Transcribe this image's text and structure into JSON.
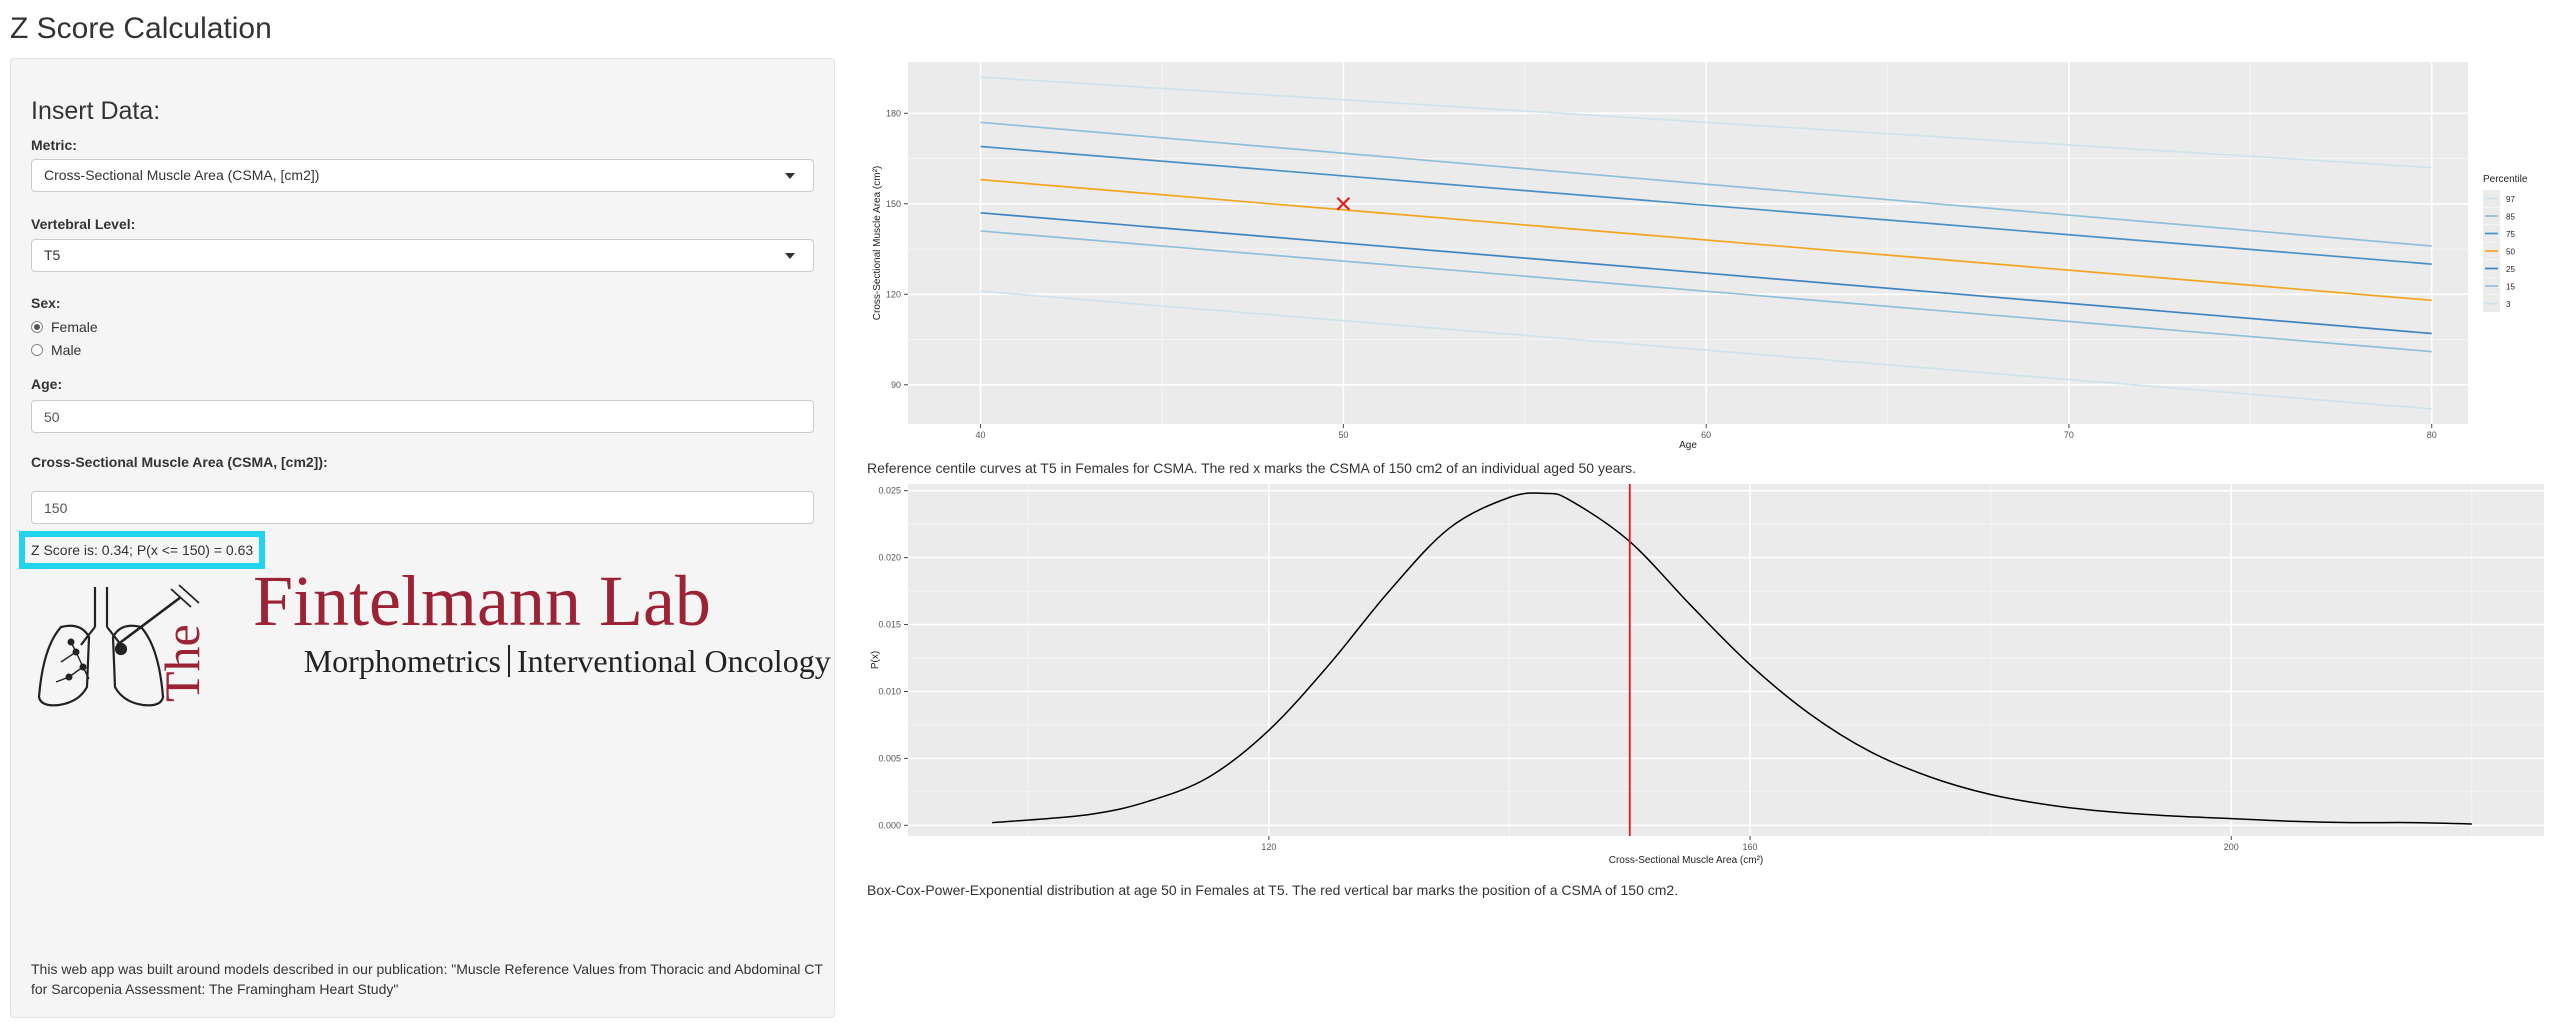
{
  "page": {
    "title": "Z Score Calculation"
  },
  "sidebar": {
    "heading": "Insert Data:",
    "metric": {
      "label": "Metric:",
      "value": "Cross-Sectional Muscle Area (CSMA, [cm2])"
    },
    "vertebral": {
      "label": "Vertebral Level:",
      "value": "T5"
    },
    "sex": {
      "label": "Sex:",
      "options": [
        "Female",
        "Male"
      ],
      "selected": "Female"
    },
    "age": {
      "label": "Age:",
      "value": "50"
    },
    "csma": {
      "label": "Cross-Sectional Muscle Area (CSMA, [cm2]):",
      "value": "150"
    },
    "result": "Z Score is: 0.34; P(x <= 150) = 0.63",
    "logo": {
      "the": "The",
      "name": "Fintelmann Lab",
      "left_sub": "Morphometrics",
      "right_sub": "Interventional Oncology",
      "brand_color": "#9b2335"
    },
    "publication": "This web app was built around models described in our publication: \"Muscle Reference Values from Thoracic and Abdominal CT for Sarcopenia Assessment: The Framingham Heart Study\""
  },
  "chart_data": [
    {
      "type": "line",
      "xlabel": "Age",
      "ylabel": "Cross-Sectional Muscle Area (cm²)",
      "xlim": [
        38,
        81
      ],
      "ylim": [
        77,
        197
      ],
      "xticks": [
        40,
        50,
        60,
        70,
        80
      ],
      "yticks": [
        90,
        120,
        150,
        180
      ],
      "legend_title": "Percentile",
      "legend_position": "right",
      "grid": true,
      "x": [
        40,
        80
      ],
      "series": [
        {
          "name": "97",
          "values": [
            192,
            162
          ],
          "color": "#cfe3ea"
        },
        {
          "name": "85",
          "values": [
            177,
            136
          ],
          "color": "#8fbfd9"
        },
        {
          "name": "75",
          "values": [
            169,
            130
          ],
          "color": "#4a90c4"
        },
        {
          "name": "50",
          "values": [
            158,
            118
          ],
          "color": "#f2a51e"
        },
        {
          "name": "25",
          "values": [
            147,
            107
          ],
          "color": "#3f84bf"
        },
        {
          "name": "15",
          "values": [
            141,
            101
          ],
          "color": "#8fbfd9"
        },
        {
          "name": "3",
          "values": [
            121,
            82
          ],
          "color": "#cfe3ea"
        }
      ],
      "marker": {
        "x": 50,
        "y": 150,
        "symbol": "x",
        "color": "#e41a1c"
      },
      "caption": "Reference centile curves at T5 in Females for CSMA. The red x marks the CSMA of 150 cm2 of an individual aged 50 years."
    },
    {
      "type": "line",
      "xlabel": "Cross-Sectional Muscle Area (cm²)",
      "ylabel": "P(x)",
      "xlim": [
        90,
        226
      ],
      "ylim": [
        -0.0008,
        0.0255
      ],
      "xticks": [
        120,
        160,
        200
      ],
      "yticks": [
        0.0,
        0.005,
        0.01,
        0.015,
        0.02,
        0.025
      ],
      "ytick_labels": [
        "0.000",
        "0.005",
        "0.010",
        "0.015",
        "0.020",
        "0.025"
      ],
      "grid": true,
      "x": [
        97,
        105,
        110,
        115,
        120,
        125,
        130,
        135,
        140,
        143,
        145,
        150,
        155,
        160,
        165,
        170,
        175,
        180,
        185,
        190,
        195,
        200,
        205,
        210,
        215,
        220
      ],
      "series": [
        {
          "name": "",
          "values": [
            0.0002,
            0.0008,
            0.0018,
            0.0036,
            0.0071,
            0.012,
            0.0175,
            0.0222,
            0.0245,
            0.0248,
            0.0243,
            0.0212,
            0.0165,
            0.012,
            0.0083,
            0.0055,
            0.0036,
            0.0023,
            0.0015,
            0.001,
            0.0007,
            0.0005,
            0.0003,
            0.0002,
            0.0002,
            0.0001
          ],
          "color": "#000000"
        }
      ],
      "vline": {
        "x": 150,
        "color": "#e41a1c"
      },
      "caption": "Box-Cox-Power-Exponential distribution at age 50 in Females at T5. The red vertical bar marks the position of a CSMA of 150 cm2."
    }
  ]
}
